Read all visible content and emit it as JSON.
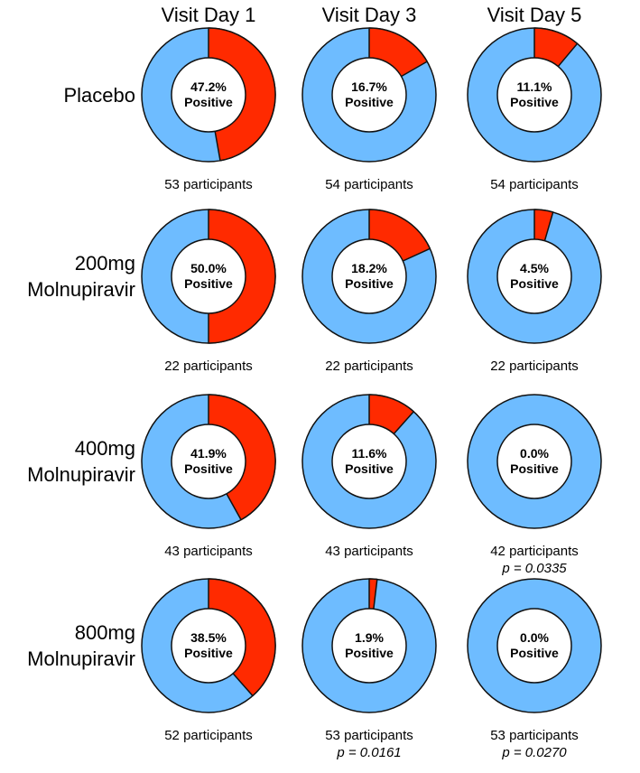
{
  "colors": {
    "positive": "#ff2a00",
    "negative": "#6ebcff",
    "stroke": "#111111",
    "hole": "#ffffff"
  },
  "columns": [
    "Visit Day 1",
    "Visit Day 3",
    "Visit Day 5"
  ],
  "rows": [
    {
      "label_lines": [
        "Placebo"
      ]
    },
    {
      "label_lines": [
        "200mg",
        "Molnupiravir"
      ]
    },
    {
      "label_lines": [
        "400mg",
        "Molnupiravir"
      ]
    },
    {
      "label_lines": [
        "800mg",
        "Molnupiravir"
      ]
    }
  ],
  "chart_data": {
    "type": "pie",
    "variant": "donut-grid",
    "categories": [
      "Positive",
      "Negative"
    ],
    "cells": [
      [
        {
          "pct": 47.2,
          "pct_label": "47.2%",
          "word": "Positive",
          "n_label": "53 participants",
          "p_label": ""
        },
        {
          "pct": 16.7,
          "pct_label": "16.7%",
          "word": "Positive",
          "n_label": "54 participants",
          "p_label": ""
        },
        {
          "pct": 11.1,
          "pct_label": "11.1%",
          "word": "Positive",
          "n_label": "54 participants",
          "p_label": ""
        }
      ],
      [
        {
          "pct": 50.0,
          "pct_label": "50.0%",
          "word": "Positive",
          "n_label": "22 participants",
          "p_label": ""
        },
        {
          "pct": 18.2,
          "pct_label": "18.2%",
          "word": "Positive",
          "n_label": "22 participants",
          "p_label": ""
        },
        {
          "pct": 4.5,
          "pct_label": "4.5%",
          "word": "Positive",
          "n_label": "22 participants",
          "p_label": ""
        }
      ],
      [
        {
          "pct": 41.9,
          "pct_label": "41.9%",
          "word": "Positive",
          "n_label": "43 participants",
          "p_label": ""
        },
        {
          "pct": 11.6,
          "pct_label": "11.6%",
          "word": "Positive",
          "n_label": "43 participants",
          "p_label": ""
        },
        {
          "pct": 0.0,
          "pct_label": "0.0%",
          "word": "Positive",
          "n_label": "42 participants",
          "p_label": "p = 0.0335"
        }
      ],
      [
        {
          "pct": 38.5,
          "pct_label": "38.5%",
          "word": "Positive",
          "n_label": "52 participants",
          "p_label": ""
        },
        {
          "pct": 1.9,
          "pct_label": "1.9%",
          "word": "Positive",
          "n_label": "53 participants",
          "p_label": "p = 0.0161"
        },
        {
          "pct": 0.0,
          "pct_label": "0.0%",
          "word": "Positive",
          "n_label": "53 participants",
          "p_label": "p = 0.0270"
        }
      ]
    ]
  }
}
